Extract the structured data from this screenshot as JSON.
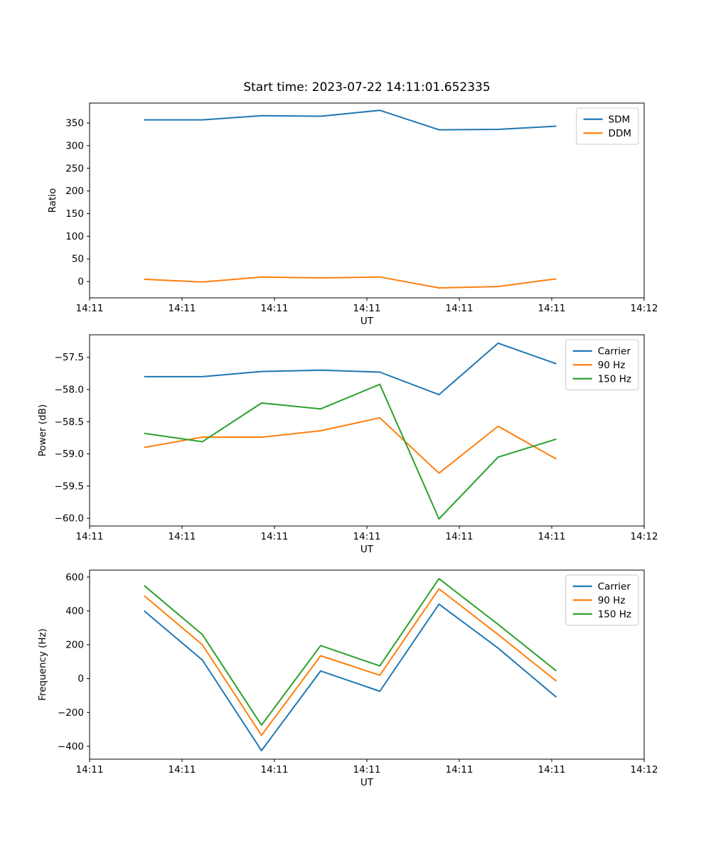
{
  "figure": {
    "title": "Start time: 2023-07-22 14:11:01.652335",
    "background": "#ffffff"
  },
  "colors": {
    "blue": "#1f77b4",
    "orange": "#ff7f0e",
    "green": "#2ca02c",
    "axis": "#000000",
    "legend_border": "#cccccc"
  },
  "chart_data": [
    {
      "type": "line",
      "title": "Start time: 2023-07-22 14:11:01.652335",
      "xlabel": "UT",
      "ylabel": "Ratio",
      "xlim_seconds": [
        0,
        60
      ],
      "x_tick_seconds": [
        0,
        10,
        20,
        30,
        40,
        50,
        60
      ],
      "x_tick_labels": [
        "14:11",
        "14:11",
        "14:11",
        "14:11",
        "14:11",
        "14:11",
        "14:12"
      ],
      "x_seconds": [
        5.9,
        12.2,
        18.6,
        25.0,
        31.4,
        37.8,
        44.2,
        50.5
      ],
      "ylim": [
        -36,
        394
      ],
      "yticks": [
        0,
        50,
        100,
        150,
        200,
        250,
        300,
        350
      ],
      "ytick_labels": [
        "0",
        "50",
        "100",
        "150",
        "200",
        "250",
        "300",
        "350"
      ],
      "grid": false,
      "legend": {
        "position": "upper right",
        "entries": [
          "SDM",
          "DDM"
        ]
      },
      "series": [
        {
          "name": "SDM",
          "color": "#1f77b4",
          "values": [
            357,
            357,
            366,
            365,
            378,
            335,
            336,
            343
          ]
        },
        {
          "name": "DDM",
          "color": "#ff7f0e",
          "values": [
            5,
            -1,
            10,
            8,
            10,
            -14,
            -11,
            6
          ]
        }
      ]
    },
    {
      "type": "line",
      "xlabel": "UT",
      "ylabel": "Power (dB)",
      "xlim_seconds": [
        0,
        60
      ],
      "x_tick_seconds": [
        0,
        10,
        20,
        30,
        40,
        50,
        60
      ],
      "x_tick_labels": [
        "14:11",
        "14:11",
        "14:11",
        "14:11",
        "14:11",
        "14:11",
        "14:12"
      ],
      "x_seconds": [
        5.9,
        12.2,
        18.6,
        25.0,
        31.4,
        37.8,
        44.2,
        50.5
      ],
      "ylim": [
        -60.12,
        -57.15
      ],
      "yticks": [
        -60.0,
        -59.5,
        -59.0,
        -58.5,
        -58.0,
        -57.5
      ],
      "ytick_labels": [
        "−60.0",
        "−59.5",
        "−59.0",
        "−58.5",
        "−58.0",
        "−57.5"
      ],
      "grid": false,
      "legend": {
        "position": "upper right",
        "entries": [
          "Carrier",
          "90 Hz",
          "150 Hz"
        ]
      },
      "series": [
        {
          "name": "Carrier",
          "color": "#1f77b4",
          "values": [
            -57.8,
            -57.8,
            -57.72,
            -57.7,
            -57.73,
            -58.08,
            -57.28,
            -57.6
          ]
        },
        {
          "name": "90 Hz",
          "color": "#ff7f0e",
          "values": [
            -58.9,
            -58.74,
            -58.74,
            -58.64,
            -58.44,
            -59.3,
            -58.57,
            -59.08
          ]
        },
        {
          "name": "150 Hz",
          "color": "#2ca02c",
          "values": [
            -58.68,
            -58.81,
            -58.21,
            -58.3,
            -57.92,
            -60.01,
            -59.05,
            -58.77
          ]
        }
      ]
    },
    {
      "type": "line",
      "xlabel": "UT",
      "ylabel": "Frequency (Hz)",
      "xlim_seconds": [
        0,
        60
      ],
      "x_tick_seconds": [
        0,
        10,
        20,
        30,
        40,
        50,
        60
      ],
      "x_tick_labels": [
        "14:11",
        "14:11",
        "14:11",
        "14:11",
        "14:11",
        "14:11",
        "14:12"
      ],
      "x_seconds": [
        5.9,
        12.2,
        18.6,
        25.0,
        31.4,
        37.8,
        44.2,
        50.5
      ],
      "ylim": [
        -476,
        641
      ],
      "yticks": [
        -400,
        -200,
        0,
        200,
        400,
        600
      ],
      "ytick_labels": [
        "−400",
        "−200",
        "0",
        "200",
        "400",
        "600"
      ],
      "grid": false,
      "legend": {
        "position": "upper right",
        "entries": [
          "Carrier",
          "90 Hz",
          "150 Hz"
        ]
      },
      "series": [
        {
          "name": "Carrier",
          "color": "#1f77b4",
          "values": [
            400,
            110,
            -425,
            45,
            -75,
            440,
            180,
            -110
          ]
        },
        {
          "name": "90 Hz",
          "color": "#ff7f0e",
          "values": [
            490,
            200,
            -335,
            135,
            20,
            530,
            260,
            -15
          ]
        },
        {
          "name": "150 Hz",
          "color": "#2ca02c",
          "values": [
            550,
            260,
            -275,
            195,
            75,
            590,
            320,
            45
          ]
        }
      ]
    }
  ]
}
